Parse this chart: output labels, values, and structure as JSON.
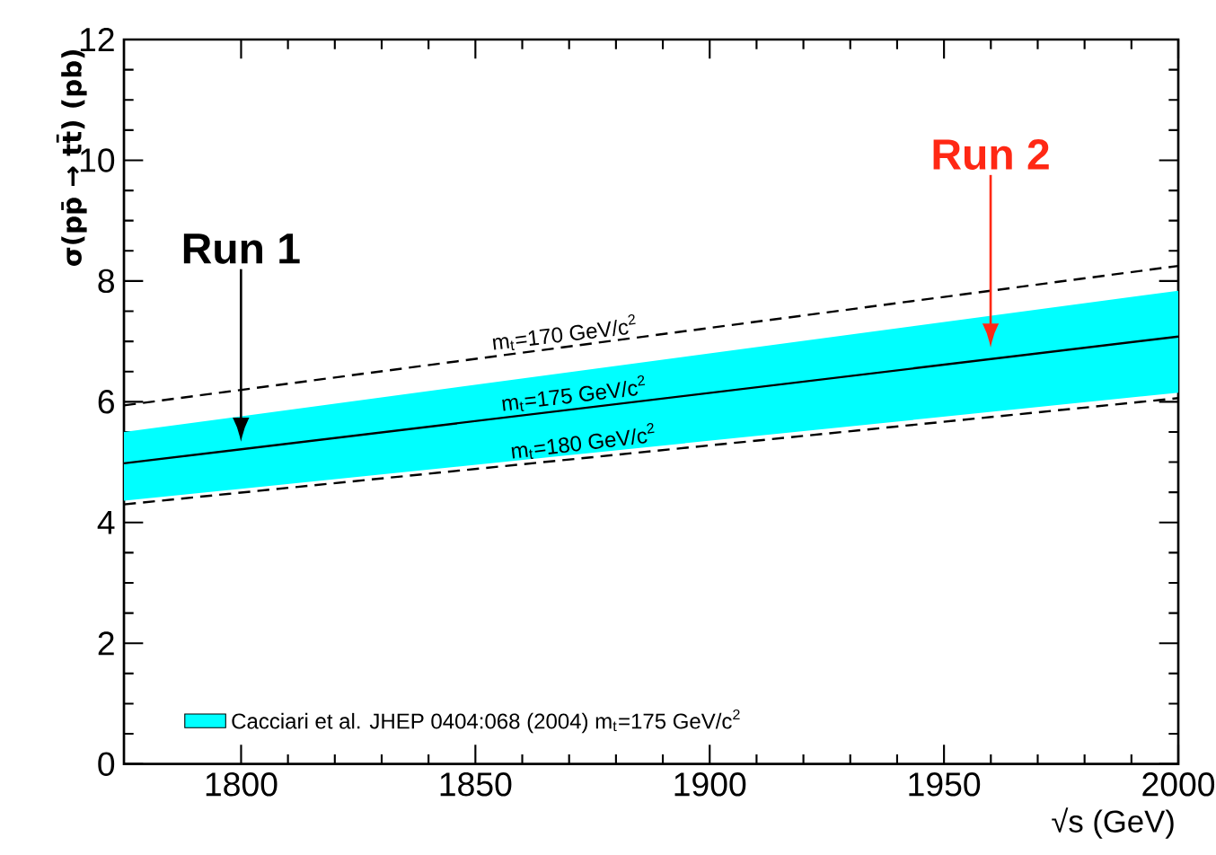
{
  "chart_data": {
    "type": "line",
    "xlabel": "√s (GeV)",
    "ylabel": "σ(pp̄ → tt̄) (pb)",
    "x": [
      1775,
      2000
    ],
    "xlim": [
      1775,
      2000
    ],
    "ylim": [
      0,
      12
    ],
    "xticks": [
      1800,
      1850,
      1900,
      1950,
      2000
    ],
    "yticks": [
      0,
      2,
      4,
      6,
      8,
      10,
      12
    ],
    "grid": false,
    "legend": "bottom left",
    "series": [
      {
        "name": "Cacciari et al. JHEP 0404:068 (2004) m$_{t}$=175 GeV/c$^{2}$",
        "color": "#000000",
        "line_style": "solid",
        "values": [
          4.98,
          7.08
        ],
        "lower": [
          4.36,
          6.15
        ],
        "upper": [
          5.5,
          7.84
        ]
      },
      {
        "color": "#000000",
        "line_style": "dashed",
        "values": [
          5.94,
          8.25
        ]
      },
      {
        "color": "#000000",
        "line_style": "dashed",
        "values": [
          4.3,
          6.06
        ]
      }
    ],
    "annotations": [
      {
        "text": "m$_{t}$=170 GeV/c$^{2}$",
        "x": 1853,
        "y": 6.74
      },
      {
        "text": "m$_{t}$=175 GeV/c$^{2}$",
        "x": 1855,
        "y": 5.73
      },
      {
        "text": "m$_{t}$=180 GeV/c$^{2}$",
        "x": 1857,
        "y": 4.94
      },
      "Run 1",
      "Run 2"
    ]
  }
}
